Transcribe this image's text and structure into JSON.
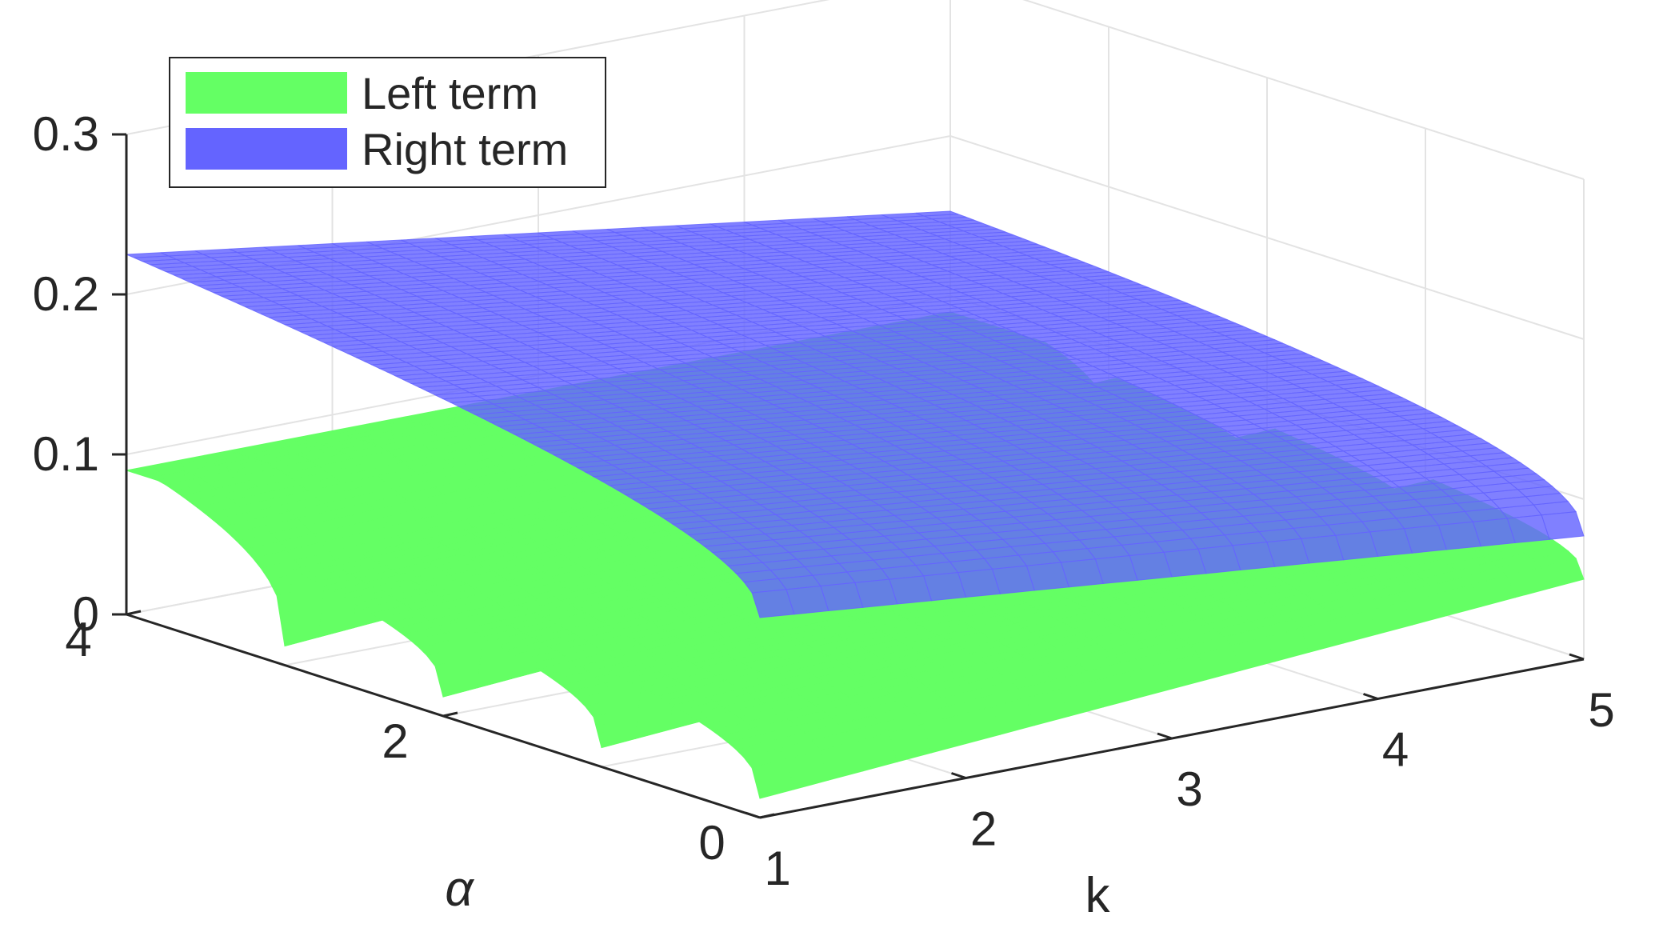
{
  "chart_data": {
    "type": "surface3d",
    "xlabel": "k",
    "ylabel": "α",
    "zlabel": "",
    "xlim": [
      1,
      5
    ],
    "ylim": [
      0,
      4
    ],
    "zlim": [
      0,
      0.3
    ],
    "xticks": [
      "1",
      "2",
      "3",
      "4",
      "5"
    ],
    "yticks": [
      "0",
      "2",
      "4"
    ],
    "zticks": [
      "0",
      "0.1",
      "0.2",
      "0.3"
    ],
    "grid": true,
    "legend_position": "top-left",
    "series": [
      {
        "name": "Left term",
        "color": "#64ff64",
        "description_values": {
          "k_sawtooth_peaks": [
            0.085,
            0.05,
            0.048,
            0.05
          ],
          "value_at_k5": 0.05,
          "value_at_k1": 0.02
        }
      },
      {
        "name": "Right term",
        "color": "#6464ff",
        "description_values": {
          "alpha4_level": 0.22,
          "alpha0_level": 0.13,
          "value_at_k5_alpha0": 0.08
        }
      }
    ]
  },
  "legend": {
    "items": [
      {
        "label": "Left term",
        "color": "#64ff64"
      },
      {
        "label": "Right term",
        "color": "#6464ff"
      }
    ]
  }
}
